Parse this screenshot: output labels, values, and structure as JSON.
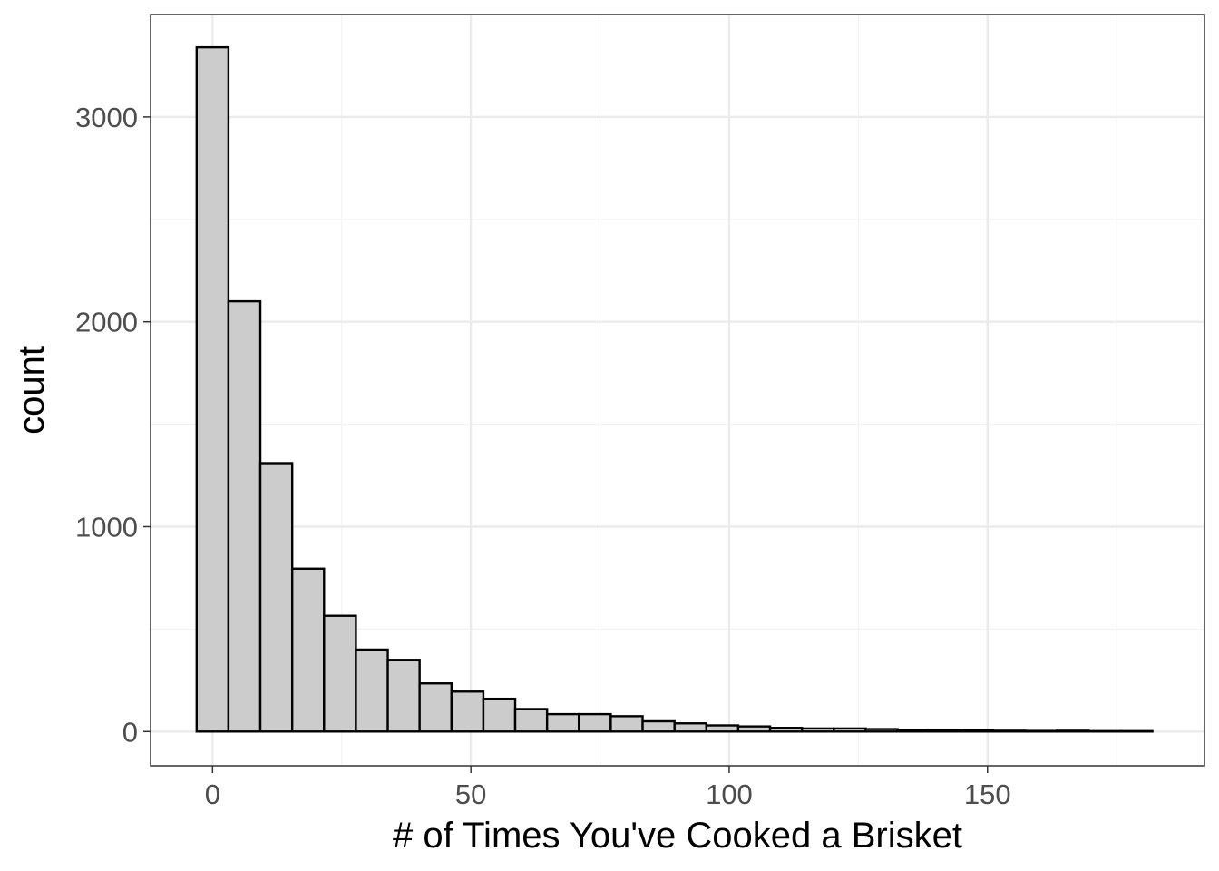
{
  "chart_data": {
    "type": "bar",
    "subtype": "histogram",
    "title": "",
    "xlabel": "# of Times You've Cooked a Brisket",
    "ylabel": "count",
    "bin_width": 6.17,
    "bins": [
      {
        "x_start": -3.08,
        "x_end": 3.08,
        "count": 3340
      },
      {
        "x_start": 3.08,
        "x_end": 9.25,
        "count": 2100
      },
      {
        "x_start": 9.25,
        "x_end": 15.42,
        "count": 1310
      },
      {
        "x_start": 15.42,
        "x_end": 21.58,
        "count": 795
      },
      {
        "x_start": 21.58,
        "x_end": 27.75,
        "count": 565
      },
      {
        "x_start": 27.75,
        "x_end": 33.92,
        "count": 400
      },
      {
        "x_start": 33.92,
        "x_end": 40.08,
        "count": 350
      },
      {
        "x_start": 40.08,
        "x_end": 46.25,
        "count": 235
      },
      {
        "x_start": 46.25,
        "x_end": 52.42,
        "count": 195
      },
      {
        "x_start": 52.42,
        "x_end": 58.58,
        "count": 160
      },
      {
        "x_start": 58.58,
        "x_end": 64.75,
        "count": 110
      },
      {
        "x_start": 64.75,
        "x_end": 70.92,
        "count": 85
      },
      {
        "x_start": 70.92,
        "x_end": 77.08,
        "count": 85
      },
      {
        "x_start": 77.08,
        "x_end": 83.25,
        "count": 75
      },
      {
        "x_start": 83.25,
        "x_end": 89.42,
        "count": 50
      },
      {
        "x_start": 89.42,
        "x_end": 95.58,
        "count": 40
      },
      {
        "x_start": 95.58,
        "x_end": 101.75,
        "count": 30
      },
      {
        "x_start": 101.75,
        "x_end": 107.92,
        "count": 25
      },
      {
        "x_start": 107.92,
        "x_end": 114.08,
        "count": 18
      },
      {
        "x_start": 114.08,
        "x_end": 120.25,
        "count": 15
      },
      {
        "x_start": 120.25,
        "x_end": 126.42,
        "count": 15
      },
      {
        "x_start": 126.42,
        "x_end": 132.58,
        "count": 12
      },
      {
        "x_start": 132.58,
        "x_end": 138.75,
        "count": 5
      },
      {
        "x_start": 138.75,
        "x_end": 144.92,
        "count": 6
      },
      {
        "x_start": 144.92,
        "x_end": 151.08,
        "count": 5
      },
      {
        "x_start": 151.08,
        "x_end": 157.25,
        "count": 4
      },
      {
        "x_start": 157.25,
        "x_end": 163.42,
        "count": 3
      },
      {
        "x_start": 163.42,
        "x_end": 169.58,
        "count": 4
      },
      {
        "x_start": 169.58,
        "x_end": 175.75,
        "count": 2
      },
      {
        "x_start": 175.75,
        "x_end": 181.92,
        "count": 2
      }
    ],
    "xlim": [
      -12,
      192
    ],
    "ylim": [
      -167,
      3500
    ],
    "x_ticks": [
      0,
      50,
      100,
      150
    ],
    "x_tick_labels": [
      "0",
      "50",
      "100",
      "150"
    ],
    "y_ticks": [
      0,
      1000,
      2000,
      3000
    ],
    "y_tick_labels": [
      "0",
      "1000",
      "2000",
      "3000"
    ],
    "x_minor_ticks": [
      25,
      75,
      125,
      175
    ],
    "y_minor_ticks": [
      500,
      1500,
      2500
    ],
    "grid": true,
    "legend": "none",
    "colors": {
      "bar_fill": "#cccccc",
      "bar_stroke": "#000000",
      "grid_major": "#ebebeb",
      "grid_minor": "#f3f3f3",
      "panel_border": "#333333",
      "tick_label": "#4d4d4d"
    }
  }
}
